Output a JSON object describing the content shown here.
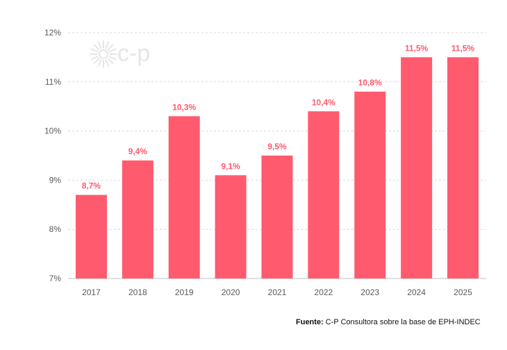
{
  "chart_data": {
    "type": "bar",
    "categories": [
      "2017",
      "2018",
      "2019",
      "2020",
      "2021",
      "2022",
      "2023",
      "2024",
      "2025"
    ],
    "values": [
      8.7,
      9.4,
      10.3,
      9.1,
      9.5,
      10.4,
      10.8,
      11.5,
      11.5
    ],
    "data_labels": [
      "8,7%",
      "9,4%",
      "10,3%",
      "9,1%",
      "9,5%",
      "10,4%",
      "10,8%",
      "11,5%",
      "11,5%"
    ],
    "y_ticks": [
      7,
      8,
      9,
      10,
      11,
      12
    ],
    "y_tick_labels": [
      "7%",
      "8%",
      "9%",
      "10%",
      "11%",
      "12%"
    ],
    "ylim": [
      7,
      12
    ],
    "grid": true,
    "title": "",
    "xlabel": "",
    "ylabel": ""
  },
  "colors": {
    "bar": "#ff5a6e",
    "data_label": "#ff5a6e",
    "grid": "#d9d9d9",
    "logo": "#e6e6e6"
  },
  "watermark": {
    "text": "c-p"
  },
  "source": {
    "label": "Fuente:",
    "text": "C-P Consultora sobre la base de EPH-INDEC"
  }
}
